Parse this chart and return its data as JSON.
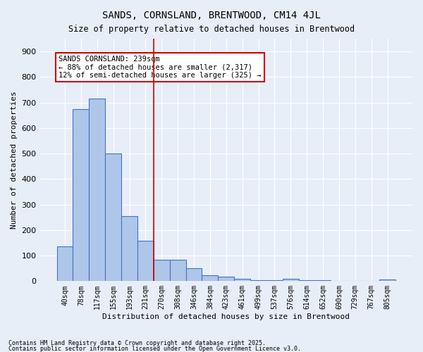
{
  "title": "SANDS, CORNSLAND, BRENTWOOD, CM14 4JL",
  "subtitle": "Size of property relative to detached houses in Brentwood",
  "xlabel": "Distribution of detached houses by size in Brentwood",
  "ylabel": "Number of detached properties",
  "bar_color": "#aec6e8",
  "bar_edge_color": "#4472c4",
  "background_color": "#e8eef8",
  "grid_color": "#ffffff",
  "categories": [
    "40sqm",
    "78sqm",
    "117sqm",
    "155sqm",
    "193sqm",
    "231sqm",
    "270sqm",
    "308sqm",
    "346sqm",
    "384sqm",
    "423sqm",
    "461sqm",
    "499sqm",
    "537sqm",
    "576sqm",
    "614sqm",
    "652sqm",
    "690sqm",
    "729sqm",
    "767sqm",
    "805sqm"
  ],
  "values": [
    135,
    675,
    715,
    500,
    255,
    158,
    85,
    85,
    50,
    22,
    18,
    8,
    5,
    5,
    9,
    5,
    3,
    2,
    2,
    2,
    7
  ],
  "ylim": [
    0,
    950
  ],
  "yticks": [
    0,
    100,
    200,
    300,
    400,
    500,
    600,
    700,
    800,
    900
  ],
  "vline_x": 5.5,
  "annotation_text": "SANDS CORNSLAND: 239sqm\n← 88% of detached houses are smaller (2,317)\n12% of semi-detached houses are larger (325) →",
  "annotation_box_color": "#ffffff",
  "annotation_box_edge": "#cc0000",
  "vline_color": "#cc0000",
  "footnote1": "Contains HM Land Registry data © Crown copyright and database right 2025.",
  "footnote2": "Contains public sector information licensed under the Open Government Licence v3.0."
}
